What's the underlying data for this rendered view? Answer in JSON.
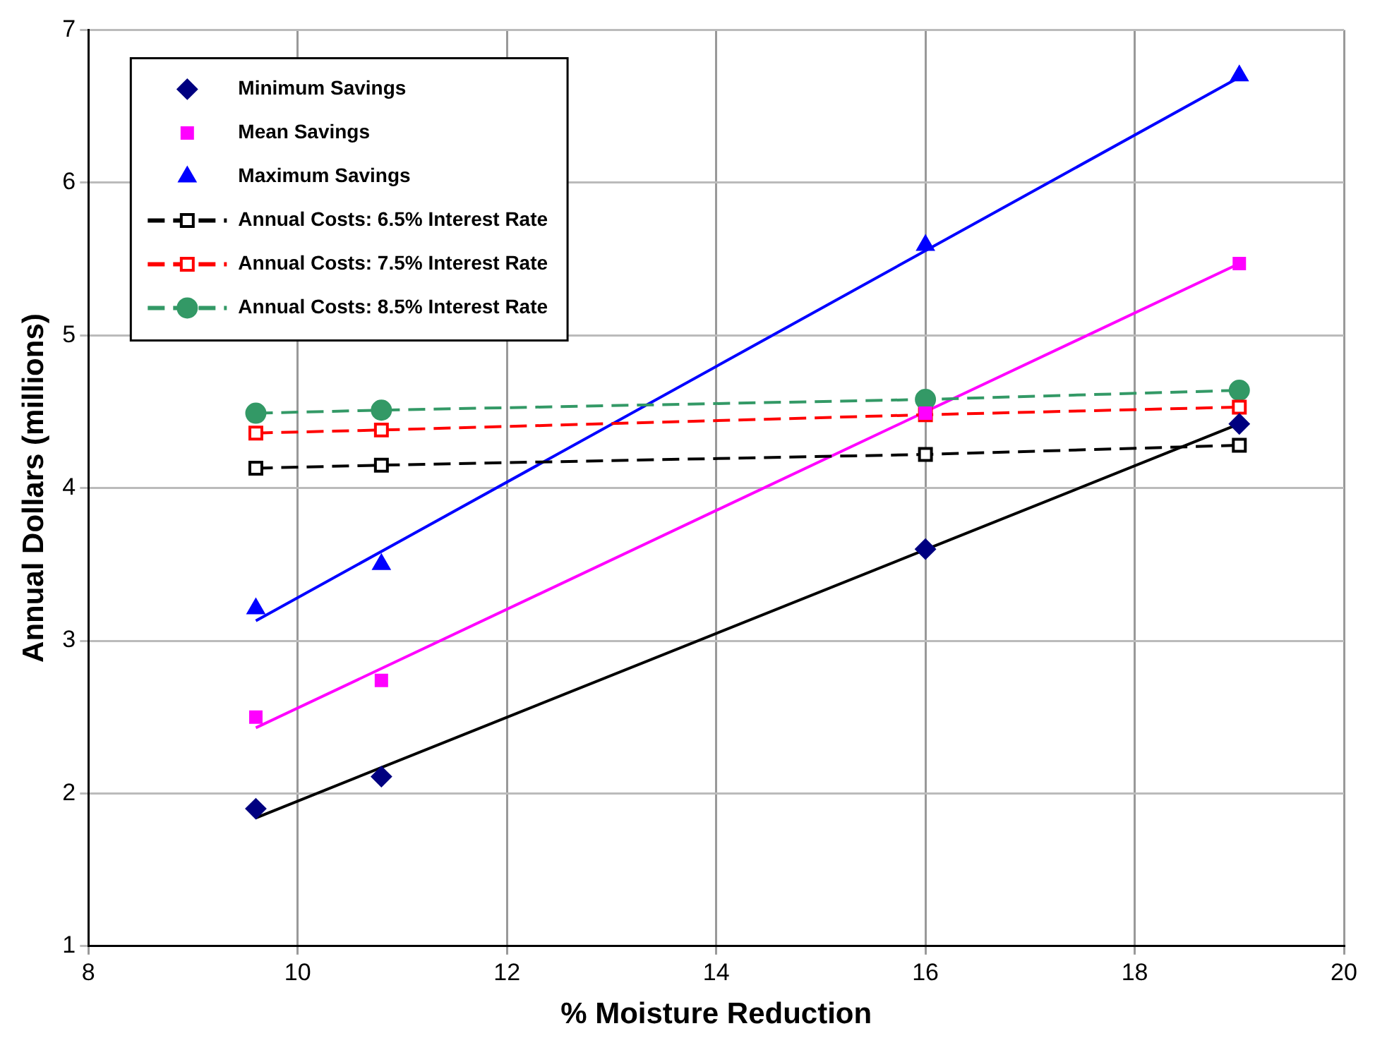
{
  "chart_data": {
    "type": "scatter",
    "xlabel": "% Moisture Reduction",
    "ylabel": "Annual Dollars (millions)",
    "xlim": [
      8,
      20
    ],
    "xticks": [
      8,
      10,
      12,
      14,
      16,
      18,
      20
    ],
    "ylim": [
      1,
      7
    ],
    "yticks": [
      1,
      2,
      3,
      4,
      5,
      6,
      7
    ],
    "grid": true,
    "legend": "top left",
    "series": [
      {
        "name": "Minimum Savings",
        "type": "scatter",
        "marker": "diamond",
        "color": "#000080",
        "x": [
          9.6,
          10.8,
          16,
          19
        ],
        "values": [
          1.9,
          2.11,
          3.6,
          4.42
        ]
      },
      {
        "name": "Mean Savings",
        "type": "scatter",
        "marker": "square",
        "color": "#ff00ff",
        "x": [
          9.6,
          10.8,
          16,
          19
        ],
        "values": [
          2.5,
          2.74,
          4.49,
          5.47
        ]
      },
      {
        "name": "Maximum Savings",
        "type": "scatter",
        "marker": "triangle",
        "color": "#0000ff",
        "x": [
          9.6,
          10.8,
          16,
          19
        ],
        "values": [
          3.21,
          3.5,
          5.59,
          6.7
        ]
      },
      {
        "name": "Annual Costs: 6.5% Interest Rate",
        "type": "line",
        "marker": "square",
        "line_style": "dashed",
        "color": "#000000",
        "x": [
          9.6,
          10.8,
          16,
          19
        ],
        "values": [
          4.13,
          4.15,
          4.22,
          4.28
        ]
      },
      {
        "name": "Annual Costs: 7.5% Interest Rate",
        "type": "line",
        "marker": "square",
        "line_style": "dashed",
        "color": "#ff0000",
        "x": [
          9.6,
          10.8,
          16,
          19
        ],
        "values": [
          4.36,
          4.38,
          4.48,
          4.53
        ]
      },
      {
        "name": "Annual Costs: 8.5% Interest Rate",
        "type": "line",
        "marker": "circle",
        "line_style": "dashed",
        "color": "#339966",
        "x": [
          9.6,
          10.8,
          16,
          19
        ],
        "values": [
          4.49,
          4.51,
          4.58,
          4.64
        ]
      },
      {
        "type": "line",
        "marker": "none",
        "line_style": "solid",
        "color": "#000000",
        "x": [
          9.6,
          19
        ],
        "values": [
          1.84,
          4.42
        ]
      },
      {
        "type": "line",
        "marker": "none",
        "line_style": "solid",
        "color": "#ff00ff",
        "x": [
          9.6,
          19
        ],
        "values": [
          2.43,
          5.47
        ]
      },
      {
        "type": "line",
        "marker": "none",
        "line_style": "solid",
        "color": "#0000ff",
        "x": [
          9.6,
          19
        ],
        "values": [
          3.13,
          6.69
        ]
      }
    ]
  }
}
